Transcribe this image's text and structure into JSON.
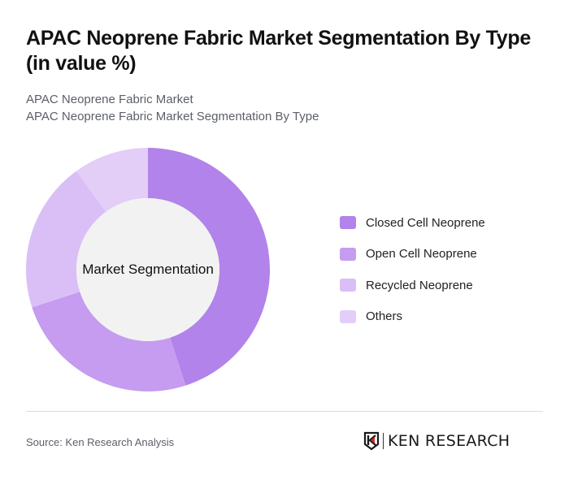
{
  "header": {
    "title": "APAC Neoprene Fabric Market Segmentation By Type (in value %)",
    "subtitle_line1": "APAC Neoprene Fabric Market",
    "subtitle_line2": "APAC Neoprene Fabric Market Segmentation By Type"
  },
  "chart": {
    "center_label": "Market Segmentation"
  },
  "legend": {
    "items": [
      {
        "label": "Closed Cell Neoprene",
        "color": "#b283ea"
      },
      {
        "label": "Open Cell Neoprene",
        "color": "#c59cef"
      },
      {
        "label": "Recycled Neoprene",
        "color": "#d9bff6"
      },
      {
        "label": "Others",
        "color": "#e3cef8"
      }
    ]
  },
  "footer": {
    "source": "Source: Ken Research Analysis",
    "logo_text": "KEN RESEARCH"
  },
  "chart_data": {
    "type": "pie",
    "variant": "donut",
    "title": "APAC Neoprene Fabric Market Segmentation By Type (in value %)",
    "subtitle": "APAC Neoprene Fabric Market Segmentation By Type",
    "center_label": "Market Segmentation",
    "categories": [
      "Closed Cell Neoprene",
      "Open Cell Neoprene",
      "Recycled Neoprene",
      "Others"
    ],
    "values": [
      45,
      25,
      20,
      10
    ],
    "unit": "%",
    "colors": [
      "#b283ea",
      "#c59cef",
      "#d9bff6",
      "#e3cef8"
    ],
    "legend_position": "right",
    "start_angle": "12 o'clock, clockwise"
  }
}
